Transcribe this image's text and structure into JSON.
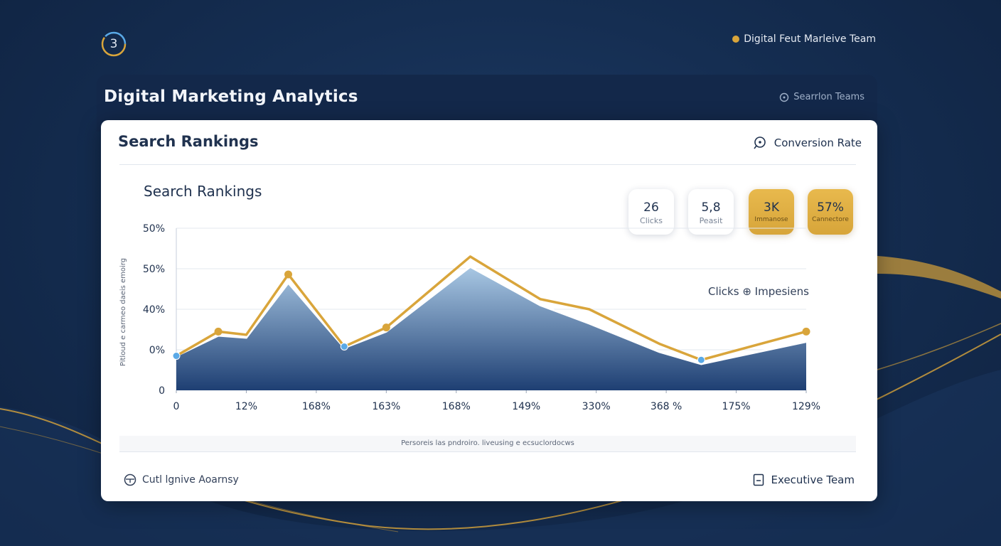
{
  "logo": {
    "badge": "3"
  },
  "top_bar": {
    "team_label": "Digital Feut Marleive Team"
  },
  "header": {
    "title": "Digital Marketing Analytics",
    "right_label": "Searrlon Teams"
  },
  "card": {
    "title": "Search Rankings",
    "top_right_label": "Conversion Rate",
    "footnote": "Persoreis las pndroiro. liveusing e ecsuclordocws",
    "footer_left_label": "Cutl lgnive Aoarnsy",
    "footer_right_label": "Executive Team"
  },
  "kpis": [
    {
      "value": "26",
      "label": "Clicks",
      "style": "white"
    },
    {
      "value": "5,8",
      "label": "Peasit",
      "style": "white"
    },
    {
      "value": "3K",
      "label": "Immanose",
      "style": "gold"
    },
    {
      "value": "57%",
      "label": "Cannectore",
      "style": "gold"
    }
  ],
  "colors": {
    "line": "#d9a53b",
    "area_top": "#a9c8e4",
    "area_bottom": "#1e3f73",
    "marker_blue": "#5aa9e6",
    "gridline": "#e3e8ef",
    "background": "#152e52"
  },
  "icons": {
    "logo": "circle-ring-icon",
    "header_right": "search-icon",
    "conversion": "search-icon",
    "footer_left": "clock-icon",
    "footer_right": "document-icon"
  },
  "chart_data": {
    "type": "line",
    "title": "Search Rankings",
    "ylabel": "Pitloud e carmeo daeis emoirg",
    "legend": "Clicks ⊕ Impesiens",
    "categories": [
      "0",
      "12%",
      "168%",
      "163%",
      "168%",
      "149%",
      "330%",
      "368 %",
      "175%",
      "129%"
    ],
    "y_ticks": [
      "50%",
      "50%",
      "40%",
      "0%",
      "0"
    ],
    "ylim": [
      0,
      4
    ],
    "grid": true,
    "series": [
      {
        "kind": "line",
        "x": [
          0,
          0.6,
          1.0,
          1.6,
          2.4,
          3.0,
          4.2,
          5.2,
          5.9,
          6.9,
          7.5,
          9.0
        ],
        "y": [
          0.85,
          1.45,
          1.37,
          2.86,
          1.08,
          1.55,
          3.3,
          2.25,
          2.0,
          1.15,
          0.75,
          1.45
        ]
      },
      {
        "kind": "area",
        "x": [
          0,
          0.6,
          1.0,
          1.6,
          2.4,
          3.0,
          4.2,
          5.2,
          5.9,
          6.9,
          7.5,
          9.0
        ],
        "y": [
          0.85,
          1.35,
          1.3,
          2.65,
          1.05,
          1.45,
          3.05,
          2.1,
          1.65,
          0.95,
          0.65,
          1.2
        ]
      }
    ],
    "gold_markers": [
      1,
      3,
      5,
      11
    ],
    "blue_markers": [
      0,
      4,
      10
    ]
  }
}
